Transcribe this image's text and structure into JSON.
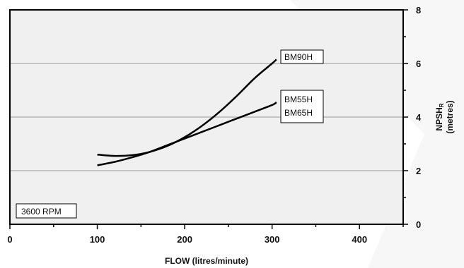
{
  "chart_data": {
    "type": "line",
    "title": "",
    "xlabel": "FLOW (litres/minute)",
    "ylabel": "NPSH",
    "ylabel_subscript": "R",
    "ylabel_unit": "(metres)",
    "xlim": [
      0,
      450
    ],
    "ylim": [
      0,
      8
    ],
    "xticks": [
      0,
      100,
      200,
      300,
      400
    ],
    "yticks": [
      0,
      2,
      4,
      6,
      8
    ],
    "grid": "horizontal",
    "annotation": "3600 RPM",
    "series": [
      {
        "name": "BM90H",
        "x": [
          100,
          120,
          140,
          160,
          180,
          200,
          220,
          240,
          260,
          280,
          300,
          305
        ],
        "y": [
          2.6,
          2.55,
          2.58,
          2.7,
          2.92,
          3.25,
          3.68,
          4.2,
          4.8,
          5.45,
          6.0,
          6.15
        ]
      },
      {
        "name": "BM55H",
        "name_line2": "BM65H",
        "x": [
          100,
          120,
          140,
          160,
          180,
          200,
          220,
          240,
          260,
          280,
          300,
          305
        ],
        "y": [
          2.2,
          2.33,
          2.5,
          2.7,
          2.95,
          3.2,
          3.45,
          3.7,
          3.95,
          4.2,
          4.45,
          4.55
        ]
      }
    ]
  }
}
